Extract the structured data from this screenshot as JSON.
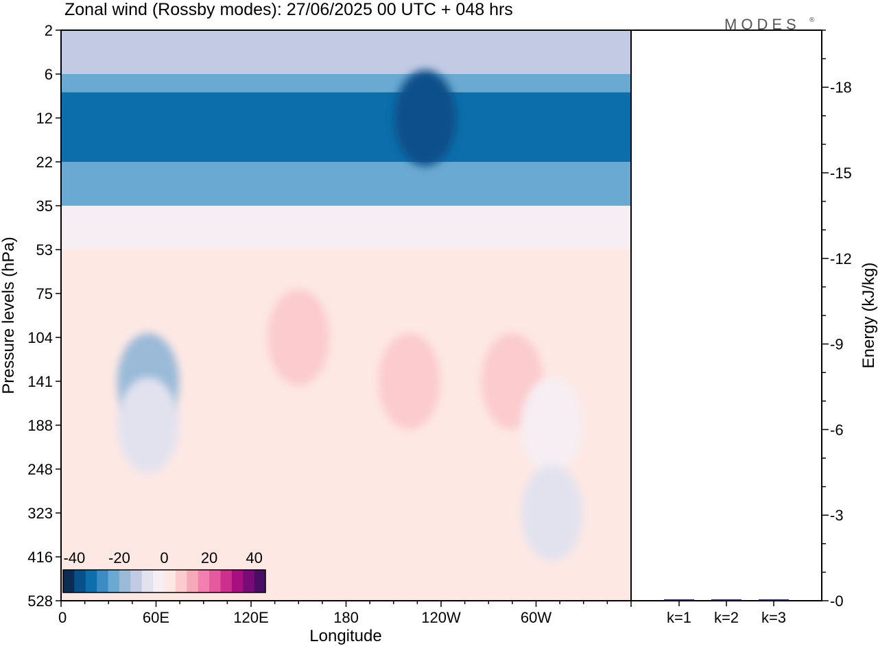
{
  "title": "Zonal wind (Rossby modes):  27/06/2025  00 UTC  + 048 hrs",
  "logo": {
    "text": "MODES",
    "mark": "®"
  },
  "chart_data": [
    {
      "type": "heatmap",
      "xlabel": "Longitude",
      "ylabel": "Pressure levels (hPa)",
      "x_ticks": [
        "0",
        "60E",
        "120E",
        "180",
        "120W",
        "60W"
      ],
      "x_tick_values": [
        0,
        60,
        120,
        180,
        240,
        300
      ],
      "xlim": [
        0,
        360
      ],
      "y_ticks": [
        "2",
        "6",
        "12",
        "22",
        "35",
        "53",
        "75",
        "104",
        "141",
        "188",
        "248",
        "323",
        "416",
        "528"
      ],
      "colorbar": {
        "labels": [
          "-40",
          "-20",
          "0",
          "20",
          "40"
        ],
        "label_values": [
          -40,
          -20,
          0,
          20,
          40
        ],
        "range": [
          -45,
          45
        ],
        "colors": [
          "#0c2c54",
          "#08508a",
          "#0c6eaa",
          "#3b8cc2",
          "#6aa9d1",
          "#9abad8",
          "#c3cbe4",
          "#e2e2ef",
          "#f6eef3",
          "#fde8e4",
          "#fbcbcd",
          "#f7a8b9",
          "#f27fb0",
          "#e55a9f",
          "#cc2f8c",
          "#a7107e",
          "#7a0a78",
          "#4a0d66"
        ]
      },
      "bands": [
        {
          "level_from": "2",
          "level_to": "6",
          "value": -12
        },
        {
          "level_from": "6",
          "level_to": "8",
          "value": -22
        },
        {
          "level_from": "8",
          "level_to": "12",
          "value": -32
        },
        {
          "level_from": "12",
          "level_to": "22",
          "value": -32
        },
        {
          "level_from": "22",
          "level_to": "35",
          "value": -25
        },
        {
          "level_from": "35",
          "level_to": "53",
          "value": -5
        },
        {
          "level_from": "53",
          "level_to": "528",
          "value": 0
        }
      ],
      "patches": [
        {
          "center": [
            55,
            "141"
          ],
          "value": -17
        },
        {
          "center": [
            55,
            "188"
          ],
          "value": -10
        },
        {
          "center": [
            150,
            "104"
          ],
          "value": 8
        },
        {
          "center": [
            220,
            "141"
          ],
          "value": 8
        },
        {
          "center": [
            285,
            "141"
          ],
          "value": 8
        },
        {
          "center": [
            310,
            "188"
          ],
          "value": -5
        },
        {
          "center": [
            310,
            "323"
          ],
          "value": -10
        },
        {
          "center": [
            230,
            "12"
          ],
          "value": -38
        }
      ]
    },
    {
      "type": "bar",
      "categories": [
        "k=1",
        "k=2",
        "k=3"
      ],
      "values": [
        0.02,
        0.01,
        0.01
      ],
      "ylabel": "Energy (kJ/kg)",
      "y_ticks": [
        0,
        3,
        6,
        9,
        12,
        15,
        18
      ],
      "ylim": [
        0,
        20
      ],
      "bar_color": "#1a1a5e"
    }
  ]
}
